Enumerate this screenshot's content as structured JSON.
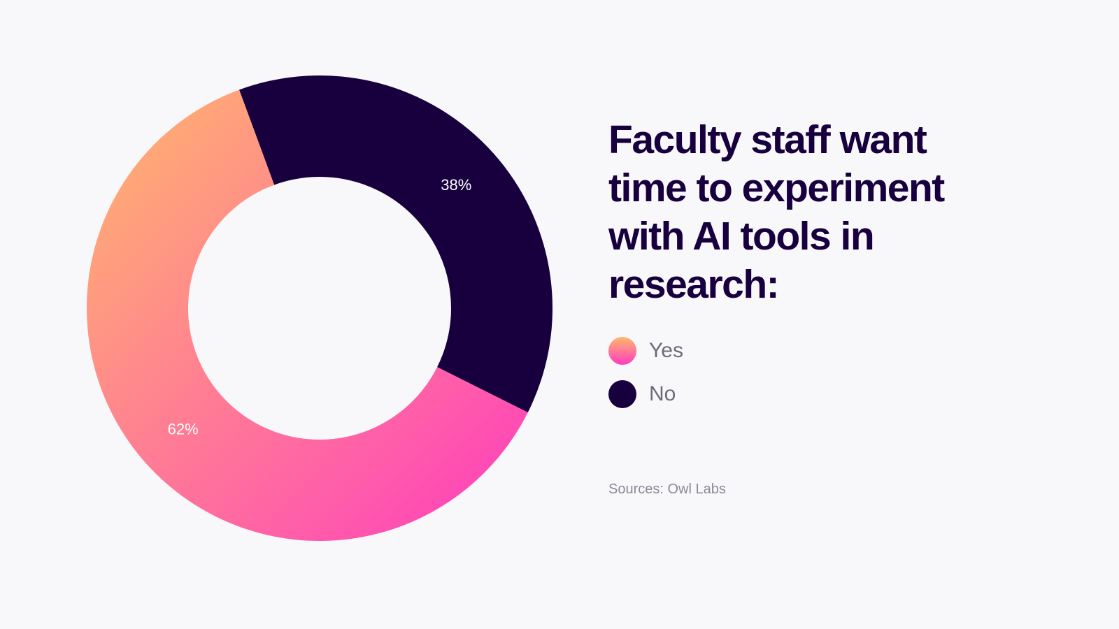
{
  "chart_data": {
    "type": "pie",
    "title": "Faculty staff want time to experiment with AI tools in research:",
    "categories": [
      "Yes",
      "No"
    ],
    "values": [
      62,
      38
    ],
    "value_labels": [
      "62%",
      "38%"
    ],
    "colors": [
      [
        "#ffb86c",
        "#ff3cbf"
      ],
      "#17003d"
    ],
    "source": "Sources: Owl Labs"
  }
}
